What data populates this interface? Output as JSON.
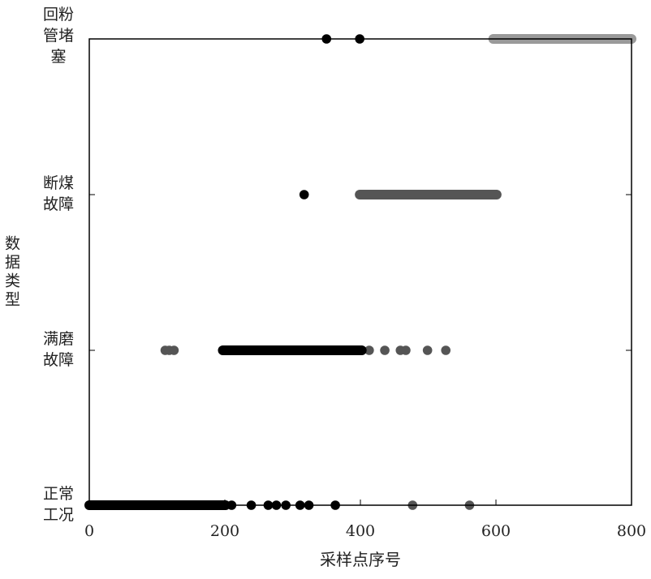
{
  "chart_data": {
    "type": "scatter",
    "title": "",
    "xlabel": "采样点序号",
    "ylabel": "数据类型",
    "xlim": [
      0,
      800
    ],
    "xticks": [
      0,
      200,
      400,
      600,
      800
    ],
    "categories": [
      {
        "label_lines": [
          "正常",
          "工况"
        ]
      },
      {
        "label_lines": [
          "满磨",
          "故障"
        ]
      },
      {
        "label_lines": [
          "断煤",
          "故障"
        ]
      },
      {
        "label_lines": [
          "回粉",
          "管堵",
          "塞"
        ]
      }
    ],
    "grid": false,
    "colors": {
      "black": "#000000",
      "dark_gray": "#555555",
      "light_gray": "#9a9a9a"
    },
    "groups": [
      {
        "category": 0,
        "color": "black",
        "continuous_runs": [
          [
            0,
            201
          ]
        ],
        "x": [
          210,
          239,
          264,
          276,
          290,
          311,
          324,
          363
        ]
      },
      {
        "category": 0,
        "color": "dark_gray",
        "x": [
          477,
          561
        ]
      },
      {
        "category": 1,
        "color": "dark_gray",
        "x": [
          112,
          118,
          125,
          413,
          436,
          459,
          467,
          499,
          526
        ]
      },
      {
        "category": 1,
        "color": "black",
        "continuous_runs": [
          [
            197,
            402
          ]
        ],
        "x": []
      },
      {
        "category": 2,
        "color": "black",
        "x": [
          317
        ]
      },
      {
        "category": 2,
        "color": "dark_gray",
        "continuous_runs": [
          [
            399,
            601
          ]
        ],
        "x": []
      },
      {
        "category": 3,
        "color": "black",
        "x": [
          350,
          399
        ]
      },
      {
        "category": 3,
        "color": "light_gray",
        "continuous_runs": [
          [
            596,
            800
          ]
        ],
        "x": []
      }
    ]
  }
}
